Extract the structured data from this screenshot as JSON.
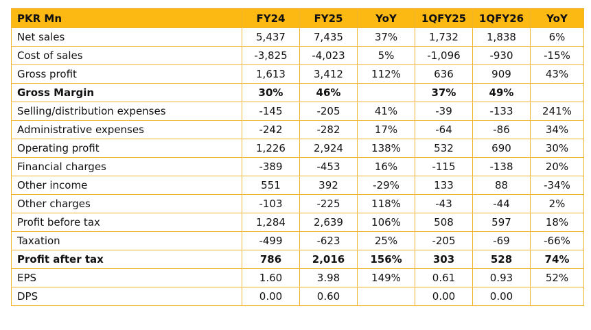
{
  "table": {
    "header": [
      "PKR Mn",
      "FY24",
      "FY25",
      "YoY",
      "1QFY25",
      "1QFY26",
      "YoY"
    ],
    "rows": [
      {
        "cells": [
          "Net sales",
          "5,437",
          "7,435",
          "37%",
          "1,732",
          "1,838",
          "6%"
        ]
      },
      {
        "cells": [
          "Cost of sales",
          "-3,825",
          "-4,023",
          "5%",
          "-1,096",
          "-930",
          "-15%"
        ]
      },
      {
        "cells": [
          "Gross profit",
          "1,613",
          "3,412",
          "112%",
          "636",
          "909",
          "43%"
        ]
      },
      {
        "cells": [
          "Gross Margin",
          "30%",
          "46%",
          null,
          "37%",
          "49%",
          null
        ],
        "bold": true
      },
      {
        "cells": [
          "Selling/distribution expenses",
          "-145",
          "-205",
          "41%",
          "-39",
          "-133",
          "241%"
        ]
      },
      {
        "cells": [
          "Administrative expenses",
          "-242",
          "-282",
          "17%",
          "-64",
          "-86",
          "34%"
        ]
      },
      {
        "cells": [
          "Operating profit",
          "1,226",
          "2,924",
          "138%",
          "532",
          "690",
          "30%"
        ]
      },
      {
        "cells": [
          "Financial charges",
          "-389",
          "-453",
          "16%",
          "-115",
          "-138",
          "20%"
        ]
      },
      {
        "cells": [
          "Other income",
          "551",
          "392",
          "-29%",
          "133",
          "88",
          "-34%"
        ]
      },
      {
        "cells": [
          "Other charges",
          "-103",
          "-225",
          "118%",
          "-43",
          "-44",
          "2%"
        ]
      },
      {
        "cells": [
          "Profit before tax",
          "1,284",
          "2,639",
          "106%",
          "508",
          "597",
          "18%"
        ]
      },
      {
        "cells": [
          "Taxation",
          "-499",
          "-623",
          "25%",
          "-205",
          "-69",
          "-66%"
        ]
      },
      {
        "cells": [
          "Profit after tax",
          "786",
          "2,016",
          "156%",
          "303",
          "528",
          "74%"
        ],
        "bold": true
      },
      {
        "cells": [
          "EPS",
          "1.60",
          "3.98",
          "149%",
          "0.61",
          "0.93",
          "52%"
        ]
      },
      {
        "cells": [
          "DPS",
          "0.00",
          "0.60",
          null,
          "0.00",
          "0.00",
          null
        ]
      }
    ]
  }
}
